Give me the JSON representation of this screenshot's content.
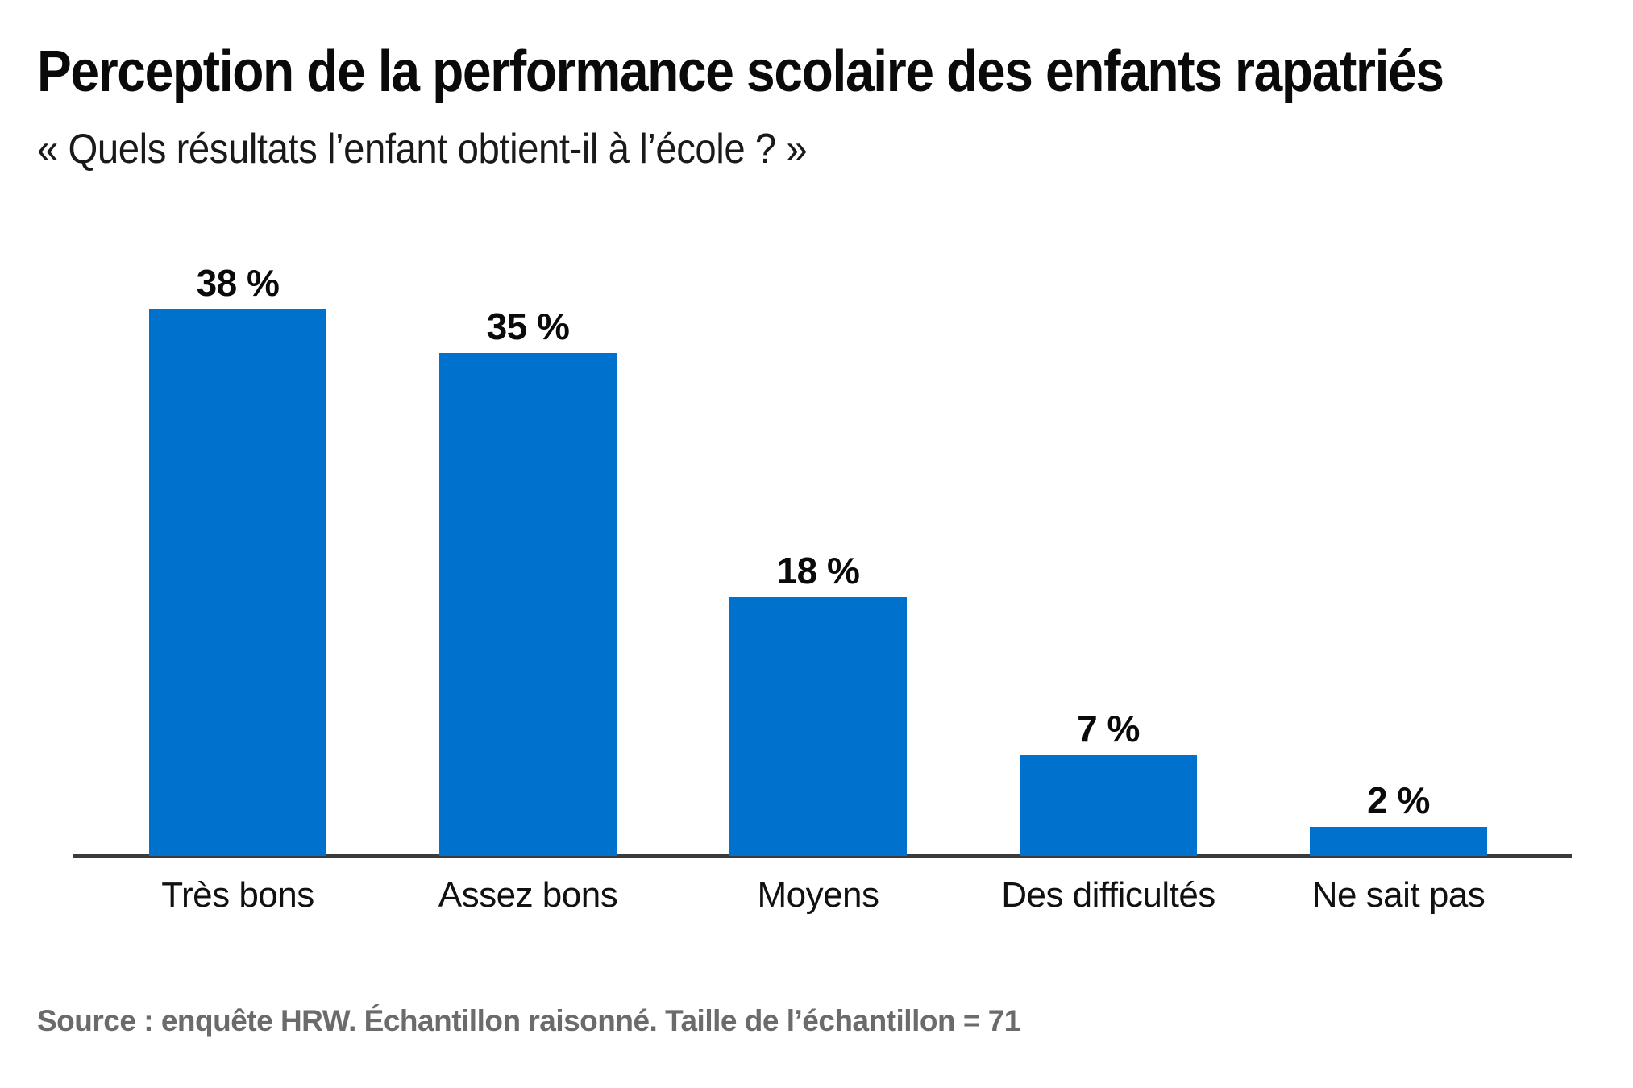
{
  "chart_data": {
    "type": "bar",
    "title": "Perception de la performance scolaire des enfants rapatriés",
    "subtitle": "« Quels résultats l’enfant obtient-il à l’école ? »",
    "categories": [
      "Très bons",
      "Assez bons",
      "Moyens",
      "Des difficultés",
      "Ne sait pas"
    ],
    "values": [
      38,
      35,
      18,
      7,
      2
    ],
    "value_labels": [
      "38 %",
      "35 %",
      "18 %",
      "7 %",
      "2 %"
    ],
    "unit": "%",
    "ylim": [
      0,
      40
    ],
    "grid": false,
    "legend": false,
    "xlabel": "",
    "ylabel": "",
    "bar_color": "#0072CE",
    "axis_color": "#3B3B3B",
    "source": "Source : enquête HRW. Échantillon raisonné. Taille de l’échantillon = 71"
  },
  "colors": {
    "background": "#FFFFFF",
    "title_text": "#0A0A0A",
    "source_text": "#6B6B6B"
  }
}
